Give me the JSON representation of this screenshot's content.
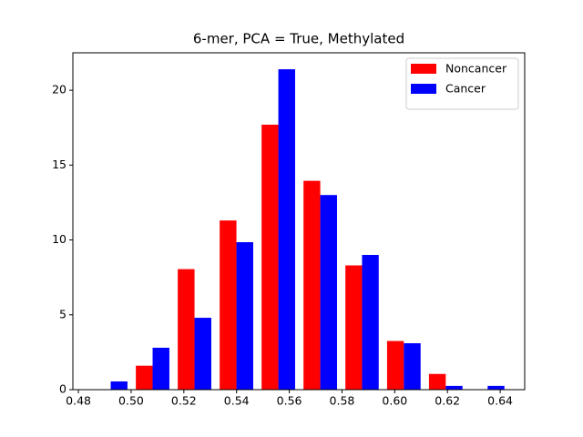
{
  "chart_data": {
    "type": "histogram",
    "title": "6-mer, PCA = True,  Methylated",
    "bins": [
      0.4843,
      0.5002,
      0.5161,
      0.532,
      0.5479,
      0.5638,
      0.5797,
      0.5955,
      0.6114,
      0.6273,
      0.6432
    ],
    "series": [
      {
        "name": "Noncancer",
        "color": "#ff0000",
        "values": [
          0,
          1.6,
          8.05,
          11.3,
          17.7,
          13.95,
          8.3,
          3.25,
          1.05,
          0
        ]
      },
      {
        "name": "Cancer",
        "color": "#0000ff",
        "values": [
          0.55,
          2.8,
          4.8,
          9.85,
          21.4,
          13.0,
          9.0,
          3.1,
          0.25,
          0.25
        ]
      }
    ],
    "xlim": [
      0.4779,
      0.6493
    ],
    "ylim": [
      0,
      22.5
    ],
    "xticks": [
      0.48,
      {
        "value": 0.5,
        "label": "0.50"
      },
      0.52,
      0.54,
      0.56,
      0.58,
      {
        "value": 0.6,
        "label": "0.60"
      },
      0.62,
      0.64
    ],
    "yticks": [
      0,
      5,
      10,
      15,
      20
    ],
    "legend": "upper right"
  }
}
